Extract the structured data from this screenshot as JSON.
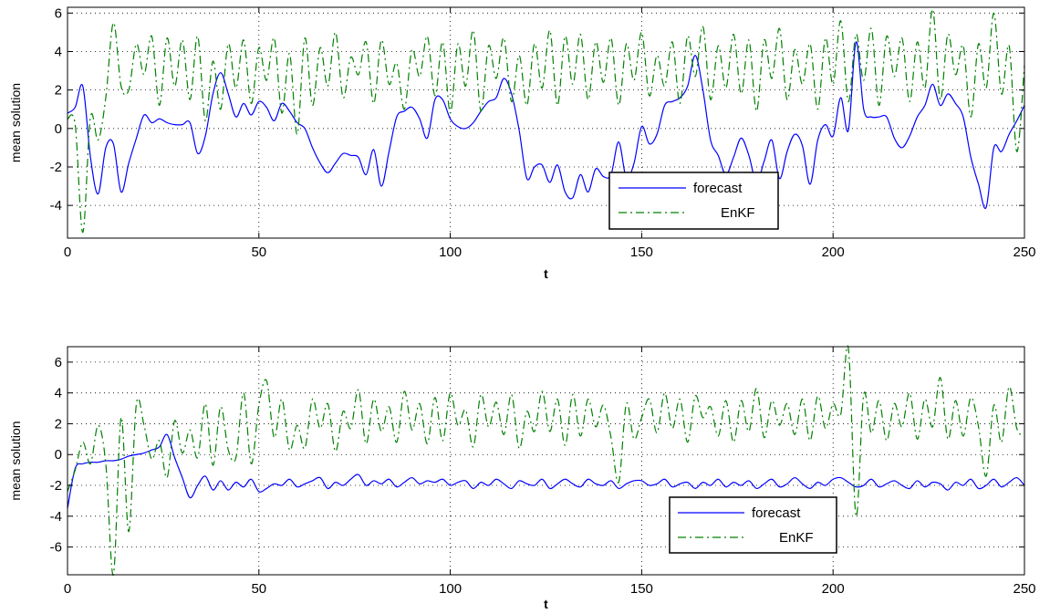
{
  "chart_data": [
    {
      "type": "line",
      "xlabel": "t",
      "ylabel": "mean solution",
      "xlim": [
        0,
        250
      ],
      "ylim": [
        -5.7,
        6.3
      ],
      "xticks": [
        0,
        50,
        100,
        150,
        200,
        250
      ],
      "yticks": [
        -4,
        -2,
        0,
        2,
        4,
        6
      ],
      "grid": true,
      "legend_position": "lower-right",
      "series": [
        {
          "name": "forecast",
          "color": "#0000ff",
          "style": "solid",
          "x": [
            0,
            2,
            4,
            6,
            8,
            10,
            12,
            14,
            16,
            18,
            20,
            22,
            24,
            26,
            28,
            30,
            32,
            34,
            36,
            38,
            40,
            42,
            44,
            46,
            48,
            50,
            52,
            54,
            56,
            58,
            60,
            62,
            64,
            66,
            68,
            70,
            72,
            74,
            76,
            78,
            80,
            82,
            84,
            86,
            88,
            90,
            92,
            94,
            96,
            98,
            100,
            102,
            104,
            106,
            108,
            110,
            112,
            114,
            116,
            118,
            120,
            122,
            124,
            126,
            128,
            130,
            132,
            134,
            136,
            138,
            140,
            142,
            144,
            146,
            148,
            150,
            152,
            154,
            156,
            158,
            160,
            162,
            164,
            166,
            168,
            170,
            172,
            174,
            176,
            178,
            180,
            182,
            184,
            186,
            188,
            190,
            192,
            194,
            196,
            198,
            200,
            202,
            204,
            206,
            208,
            210,
            212,
            214,
            216,
            218,
            220,
            222,
            224,
            226,
            228,
            230,
            232,
            234,
            236,
            238,
            240,
            242,
            244,
            246,
            248,
            250
          ],
          "values": [
            0.8,
            1.1,
            2.2,
            -1.5,
            -3.4,
            -1.0,
            -0.8,
            -3.3,
            -1.8,
            -0.5,
            0.7,
            0.3,
            0.5,
            0.3,
            0.2,
            0.2,
            0.3,
            -1.3,
            -0.4,
            1.8,
            2.9,
            1.8,
            0.6,
            1.3,
            0.7,
            1.4,
            1.1,
            0.4,
            1.3,
            0.9,
            0.3,
            0.0,
            -1.0,
            -1.8,
            -2.3,
            -1.8,
            -1.3,
            -1.4,
            -1.5,
            -2.4,
            -1.1,
            -3.0,
            -1.2,
            0.6,
            0.9,
            1.1,
            0.5,
            -0.5,
            1.5,
            1.5,
            0.5,
            0.1,
            0.0,
            0.3,
            0.9,
            1.4,
            1.6,
            2.6,
            1.8,
            -0.1,
            -2.6,
            -2.0,
            -1.9,
            -2.8,
            -1.9,
            -3.3,
            -3.6,
            -2.4,
            -3.3,
            -2.1,
            -2.5,
            -2.4,
            -0.7,
            -2.6,
            -1.8,
            0.1,
            -0.8,
            -0.3,
            1.2,
            1.4,
            1.6,
            2.2,
            3.8,
            2.0,
            -0.6,
            -1.4,
            -2.4,
            -1.5,
            -0.5,
            -1.4,
            -2.8,
            -1.7,
            -0.6,
            -2.6,
            -1.2,
            -0.3,
            -0.9,
            -2.9,
            -0.6,
            0.2,
            -0.4,
            1.6,
            -0.1,
            4.5,
            1.0,
            0.6,
            0.6,
            0.6,
            -0.5,
            -1.0,
            -0.4,
            0.6,
            1.2,
            2.3,
            1.2,
            1.8,
            1.3,
            0.6,
            -1.5,
            -2.9,
            -4.1,
            -1.0,
            -1.2,
            -0.3,
            0.4,
            1.2
          ]
        },
        {
          "name": "EnKF",
          "color": "#008000",
          "style": "dashdot",
          "x": [
            0,
            2,
            4,
            6,
            8,
            10,
            12,
            14,
            16,
            18,
            20,
            22,
            24,
            26,
            28,
            30,
            32,
            34,
            36,
            38,
            40,
            42,
            44,
            46,
            48,
            50,
            52,
            54,
            56,
            58,
            60,
            62,
            64,
            66,
            68,
            70,
            72,
            74,
            76,
            78,
            80,
            82,
            84,
            86,
            88,
            90,
            92,
            94,
            96,
            98,
            100,
            102,
            104,
            106,
            108,
            110,
            112,
            114,
            116,
            118,
            120,
            122,
            124,
            126,
            128,
            130,
            132,
            134,
            136,
            138,
            140,
            142,
            144,
            146,
            148,
            150,
            152,
            154,
            156,
            158,
            160,
            162,
            164,
            166,
            168,
            170,
            172,
            174,
            176,
            178,
            180,
            182,
            184,
            186,
            188,
            190,
            192,
            194,
            196,
            198,
            200,
            202,
            204,
            206,
            208,
            210,
            212,
            214,
            216,
            218,
            220,
            222,
            224,
            226,
            228,
            230,
            232,
            234,
            236,
            238,
            240,
            242,
            244,
            246,
            248,
            250
          ],
          "values": [
            0.5,
            0.2,
            -5.4,
            0.6,
            -0.6,
            1.6,
            5.5,
            2.2,
            2.0,
            4.4,
            2.8,
            4.8,
            1.2,
            4.7,
            2.2,
            4.6,
            1.5,
            4.8,
            0.4,
            3.5,
            1.0,
            4.4,
            2.1,
            4.6,
            1.3,
            4.2,
            2.5,
            4.7,
            0.8,
            3.9,
            -0.3,
            4.7,
            1.2,
            4.2,
            2.2,
            5.0,
            1.6,
            3.7,
            2.8,
            4.5,
            1.3,
            4.6,
            2.3,
            3.4,
            1.0,
            4.1,
            2.7,
            4.8,
            1.7,
            4.5,
            0.8,
            4.4,
            2.2,
            5.1,
            0.9,
            4.3,
            2.6,
            4.7,
            1.4,
            3.8,
            1.2,
            4.4,
            2.1,
            5.1,
            1.2,
            4.8,
            2.3,
            4.9,
            1.5,
            4.5,
            2.4,
            4.7,
            1.2,
            4.4,
            2.5,
            5.0,
            1.7,
            3.8,
            2.2,
            4.5,
            1.3,
            4.8,
            2.7,
            5.3,
            1.5,
            4.3,
            2.1,
            4.9,
            1.8,
            4.6,
            0.9,
            4.6,
            2.6,
            5.2,
            1.5,
            4.1,
            2.3,
            4.4,
            1.0,
            4.7,
            2.3,
            5.6,
            1.4,
            4.9,
            2.5,
            5.2,
            1.2,
            4.8,
            2.7,
            4.7,
            1.4,
            4.5,
            2.1,
            6.2,
            1.5,
            4.9,
            2.8,
            4.3,
            0.6,
            4.4,
            2.1,
            6.0,
            1.8,
            4.3,
            -1.2,
            3.3
          ]
        }
      ]
    },
    {
      "type": "line",
      "xlabel": "t",
      "ylabel": "mean solution",
      "xlim": [
        0,
        250
      ],
      "ylim": [
        -7.8,
        7.0
      ],
      "xticks": [
        0,
        50,
        100,
        150,
        200,
        250
      ],
      "yticks": [
        -6,
        -4,
        -2,
        0,
        2,
        4,
        6
      ],
      "grid": true,
      "legend_position": "lower-right",
      "series": [
        {
          "name": "forecast",
          "color": "#0000ff",
          "style": "solid",
          "x": [
            0,
            2,
            4,
            6,
            8,
            10,
            12,
            14,
            16,
            18,
            20,
            22,
            24,
            26,
            28,
            30,
            32,
            34,
            36,
            38,
            40,
            42,
            44,
            46,
            48,
            50,
            52,
            54,
            56,
            58,
            60,
            62,
            64,
            66,
            68,
            70,
            72,
            74,
            76,
            78,
            80,
            82,
            84,
            86,
            88,
            90,
            92,
            94,
            96,
            98,
            100,
            102,
            104,
            106,
            108,
            110,
            112,
            114,
            116,
            118,
            120,
            122,
            124,
            126,
            128,
            130,
            132,
            134,
            136,
            138,
            140,
            142,
            144,
            146,
            148,
            150,
            152,
            154,
            156,
            158,
            160,
            162,
            164,
            166,
            168,
            170,
            172,
            174,
            176,
            178,
            180,
            182,
            184,
            186,
            188,
            190,
            192,
            194,
            196,
            198,
            200,
            202,
            204,
            206,
            208,
            210,
            212,
            214,
            216,
            218,
            220,
            222,
            224,
            226,
            228,
            230,
            232,
            234,
            236,
            238,
            240,
            242,
            244,
            246,
            248,
            250
          ],
          "values": [
            -3.5,
            -0.9,
            -0.6,
            -0.5,
            -0.5,
            -0.4,
            -0.4,
            -0.3,
            -0.1,
            0.0,
            0.1,
            0.3,
            0.5,
            1.3,
            -0.2,
            -1.5,
            -2.8,
            -2.0,
            -1.4,
            -2.3,
            -1.7,
            -2.3,
            -1.8,
            -2.1,
            -1.6,
            -2.4,
            -2.2,
            -1.9,
            -2.0,
            -1.6,
            -2.1,
            -1.9,
            -1.7,
            -1.5,
            -2.2,
            -1.8,
            -2.0,
            -1.6,
            -1.3,
            -2.0,
            -1.7,
            -1.9,
            -1.6,
            -2.1,
            -1.8,
            -1.5,
            -1.9,
            -1.7,
            -1.8,
            -1.6,
            -2.0,
            -1.8,
            -1.7,
            -2.2,
            -1.8,
            -2.0,
            -1.6,
            -1.9,
            -2.2,
            -1.7,
            -1.9,
            -2.0,
            -1.6,
            -2.2,
            -1.9,
            -1.6,
            -1.9,
            -2.1,
            -1.6,
            -1.9,
            -2.0,
            -1.7,
            -2.2,
            -1.9,
            -1.7,
            -1.7,
            -2.0,
            -1.9,
            -1.6,
            -2.1,
            -1.9,
            -1.8,
            -2.2,
            -1.8,
            -2.0,
            -1.6,
            -2.1,
            -1.8,
            -2.0,
            -1.7,
            -2.2,
            -1.9,
            -1.6,
            -2.1,
            -1.9,
            -1.5,
            -1.9,
            -2.2,
            -1.8,
            -2.0,
            -1.6,
            -1.5,
            -1.8,
            -2.1,
            -2.0,
            -1.6,
            -2.1,
            -1.9,
            -1.7,
            -2.0,
            -2.2,
            -1.7,
            -2.1,
            -1.8,
            -1.9,
            -2.3,
            -1.8,
            -2.0,
            -1.6,
            -2.2,
            -2.0,
            -1.6,
            -2.1,
            -1.8,
            -1.5,
            -2.0
          ]
        },
        {
          "name": "EnKF",
          "color": "#008000",
          "style": "dashdot",
          "x": [
            0,
            2,
            4,
            6,
            8,
            10,
            12,
            14,
            16,
            18,
            20,
            22,
            24,
            26,
            28,
            30,
            32,
            34,
            36,
            38,
            40,
            42,
            44,
            46,
            48,
            50,
            52,
            54,
            56,
            58,
            60,
            62,
            64,
            66,
            68,
            70,
            72,
            74,
            76,
            78,
            80,
            82,
            84,
            86,
            88,
            90,
            92,
            94,
            96,
            98,
            100,
            102,
            104,
            106,
            108,
            110,
            112,
            114,
            116,
            118,
            120,
            122,
            124,
            126,
            128,
            130,
            132,
            134,
            136,
            138,
            140,
            142,
            144,
            146,
            148,
            150,
            152,
            154,
            156,
            158,
            160,
            162,
            164,
            166,
            168,
            170,
            172,
            174,
            176,
            178,
            180,
            182,
            184,
            186,
            188,
            190,
            192,
            194,
            196,
            198,
            200,
            202,
            204,
            206,
            208,
            210,
            212,
            214,
            216,
            218,
            220,
            222,
            224,
            226,
            228,
            230,
            232,
            234,
            236,
            238,
            240,
            242,
            244,
            246,
            248,
            250
          ],
          "values": [
            -2.4,
            -1.0,
            0.8,
            -0.6,
            1.9,
            -0.6,
            -7.8,
            2.4,
            -5.0,
            3.3,
            1.9,
            -0.3,
            0.9,
            -1.5,
            2.2,
            0.1,
            1.6,
            -0.2,
            3.3,
            -0.7,
            3.1,
            0.3,
            -0.2,
            4.0,
            -0.6,
            3.2,
            4.8,
            1.1,
            3.6,
            0.3,
            1.9,
            0.4,
            3.6,
            1.7,
            3.3,
            0.2,
            2.8,
            1.7,
            4.2,
            0.7,
            3.6,
            1.5,
            3.1,
            0.8,
            4.1,
            1.6,
            3.3,
            0.7,
            3.7,
            0.9,
            4.0,
            1.9,
            2.9,
            0.5,
            3.9,
            1.8,
            3.4,
            1.3,
            3.9,
            0.4,
            2.8,
            1.5,
            4.1,
            1.5,
            3.6,
            0.6,
            3.9,
            1.2,
            3.6,
            1.8,
            3.2,
            1.1,
            -1.8,
            3.3,
            1.0,
            2.4,
            3.6,
            1.4,
            4.0,
            1.7,
            3.6,
            0.8,
            3.8,
            2.4,
            3.1,
            1.2,
            3.5,
            0.8,
            3.5,
            1.5,
            4.3,
            1.1,
            3.5,
            1.9,
            3.3,
            1.3,
            3.6,
            0.9,
            3.8,
            1.7,
            3.3,
            2.6,
            6.9,
            -4.0,
            3.9,
            1.4,
            3.5,
            0.9,
            3.3,
            1.8,
            4.0,
            1.0,
            3.6,
            1.8,
            5.0,
            1.0,
            3.5,
            1.2,
            3.7,
            1.8,
            -1.4,
            3.2,
            0.8,
            4.4,
            1.7,
            1.2
          ]
        }
      ]
    }
  ]
}
